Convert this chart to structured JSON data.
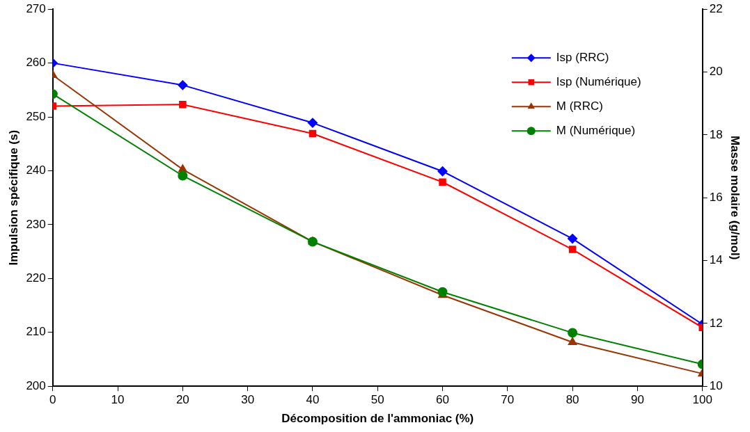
{
  "chart_data": {
    "type": "line",
    "xlabel": "Décomposition de l'ammoniac (%)",
    "ylabel": "Impulsion spécifique (s)",
    "y2label": "Masse molaire (g/mol)",
    "x": [
      0,
      20,
      40,
      60,
      80,
      100
    ],
    "xlim": [
      0,
      100
    ],
    "xticks": [
      0,
      10,
      20,
      30,
      40,
      50,
      60,
      70,
      80,
      90,
      100
    ],
    "ylim": [
      200,
      270
    ],
    "yticks": [
      200,
      210,
      220,
      230,
      240,
      250,
      260,
      270
    ],
    "y2lim": [
      10,
      22
    ],
    "y2ticks": [
      10,
      12,
      14,
      16,
      18,
      20,
      22
    ],
    "grid": false,
    "legend": "top right",
    "line_style": "solid",
    "series": [
      {
        "name": "Isp (RRC)",
        "color": "#0000ff",
        "marker": "diamond",
        "values": [
          260,
          255.9,
          248.9,
          239.9,
          227.4,
          211.5
        ]
      },
      {
        "name": "Isp (Numérique)",
        "color": "#ff0000",
        "marker": "square",
        "values": [
          252,
          252.3,
          246.9,
          237.9,
          225.4,
          210.9
        ]
      },
      {
        "name": "M (RRC)",
        "color": "#993300",
        "marker": "triangle",
        "axis": "y2",
        "values": [
          19.9,
          16.9,
          14.6,
          12.9,
          11.4,
          10.4
        ]
      },
      {
        "name": "M (Numérique)",
        "color": "#008000",
        "marker": "circle",
        "axis": "y2",
        "values": [
          19.3,
          16.7,
          14.6,
          13.0,
          11.7,
          10.7
        ]
      }
    ]
  }
}
